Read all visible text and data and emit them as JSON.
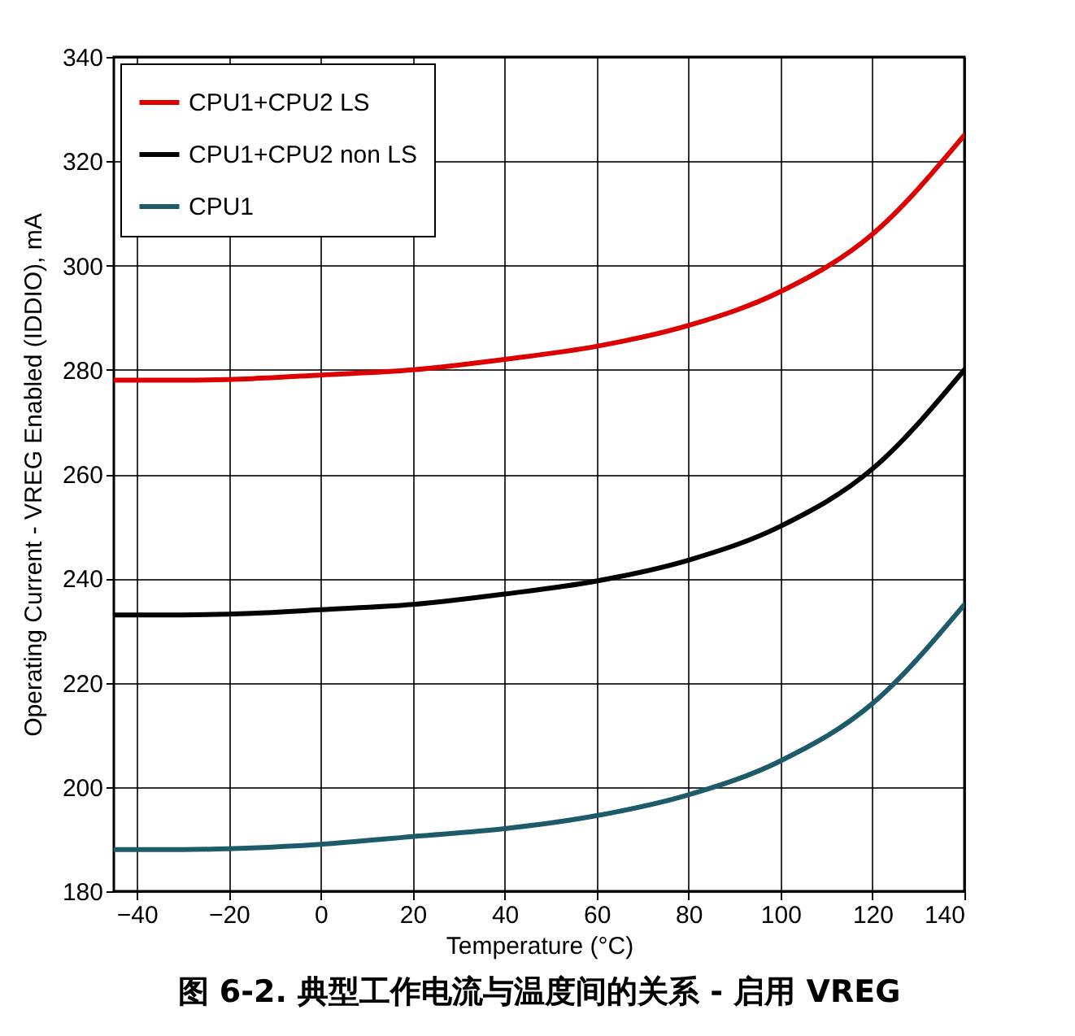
{
  "chart_data": {
    "type": "line",
    "title": "图 6-2. 典型工作电流与温度间的关系 - 启用 VREG",
    "xlabel": "Temperature (°C)",
    "ylabel": "Operating Current - VREG Enabled (IDDIO), mA",
    "x": [
      -45,
      -30,
      -15,
      0,
      20,
      40,
      60,
      80,
      100,
      120,
      140
    ],
    "series": [
      {
        "name": "CPU1+CPU2 LS",
        "color": "#dd0000",
        "values": [
          278,
          278,
          278.3,
          279,
          280,
          282,
          284.5,
          288.5,
          295,
          306,
          325
        ]
      },
      {
        "name": "CPU1+CPU2 non LS",
        "color": "#000000",
        "values": [
          233,
          233,
          233.3,
          234,
          235,
          237,
          239.5,
          243.5,
          250,
          261,
          280
        ]
      },
      {
        "name": "CPU1",
        "color": "#1d5b6b",
        "values": [
          188,
          188,
          188.3,
          189,
          190.5,
          192,
          194.5,
          198.5,
          205,
          216,
          235
        ]
      }
    ],
    "xlim": [
      -45,
      140
    ],
    "xticks": [
      -40,
      -20,
      0,
      20,
      40,
      60,
      80,
      100,
      120,
      140
    ],
    "ylim": [
      180,
      340
    ],
    "yticks": [
      180,
      200,
      220,
      240,
      260,
      280,
      300,
      320,
      340
    ],
    "grid": true,
    "legend": "top left",
    "line_style": "solid",
    "marker": "none"
  }
}
